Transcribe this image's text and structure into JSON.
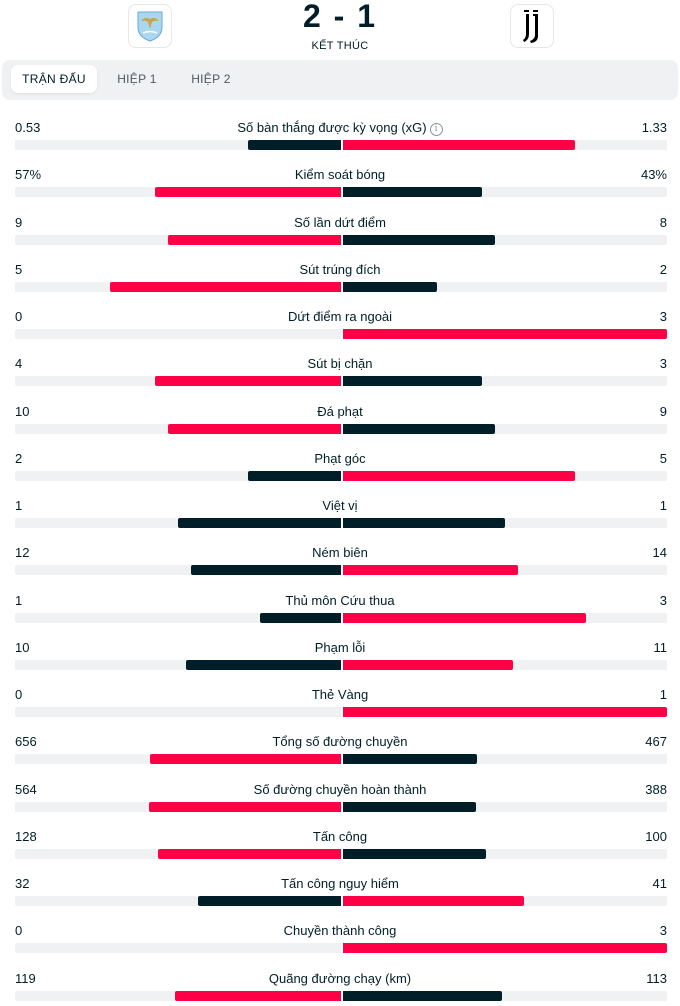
{
  "match": {
    "score": "2 - 1",
    "status": "KẾT THÚC",
    "home_logo_icon": "lazio-crest-icon",
    "away_logo_icon": "juventus-crest-icon"
  },
  "tabs": [
    {
      "label": "TRẬN ĐẤU",
      "active": true
    },
    {
      "label": "HIỆP 1",
      "active": false
    },
    {
      "label": "HIỆP 2",
      "active": false
    }
  ],
  "colors": {
    "leader": "#ff0046",
    "trailer": "#001e28",
    "track": "#eff1f2"
  },
  "stats": [
    {
      "label": "Số bàn thắng được kỳ vọng (xG)",
      "home": "0.53",
      "away": "1.33",
      "home_share": 0.285,
      "away_share": 0.715,
      "info_icon": "i"
    },
    {
      "label": "Kiểm soát bóng",
      "home": "57%",
      "away": "43%",
      "home_share": 0.57,
      "away_share": 0.43
    },
    {
      "label": "Số lần dứt điểm",
      "home": "9",
      "away": "8",
      "home_share": 0.53,
      "away_share": 0.47
    },
    {
      "label": "Sút trúng đích",
      "home": "5",
      "away": "2",
      "home_share": 0.71,
      "away_share": 0.29
    },
    {
      "label": "Dứt điểm ra ngoài",
      "home": "0",
      "away": "3",
      "home_share": 0.0,
      "away_share": 1.0
    },
    {
      "label": "Sút bị chặn",
      "home": "4",
      "away": "3",
      "home_share": 0.57,
      "away_share": 0.43
    },
    {
      "label": "Đá phạt",
      "home": "10",
      "away": "9",
      "home_share": 0.53,
      "away_share": 0.47
    },
    {
      "label": "Phạt góc",
      "home": "2",
      "away": "5",
      "home_share": 0.285,
      "away_share": 0.715
    },
    {
      "label": "Việt vị",
      "home": "1",
      "away": "1",
      "home_share": 0.5,
      "away_share": 0.5
    },
    {
      "label": "Ném biên",
      "home": "12",
      "away": "14",
      "home_share": 0.46,
      "away_share": 0.54
    },
    {
      "label": "Thủ môn Cứu thua",
      "home": "1",
      "away": "3",
      "home_share": 0.25,
      "away_share": 0.75
    },
    {
      "label": "Phạm lỗi",
      "home": "10",
      "away": "11",
      "home_share": 0.475,
      "away_share": 0.525
    },
    {
      "label": "Thẻ Vàng",
      "home": "0",
      "away": "1",
      "home_share": 0.0,
      "away_share": 1.0
    },
    {
      "label": "Tổng số đường chuyền",
      "home": "656",
      "away": "467",
      "home_share": 0.585,
      "away_share": 0.415
    },
    {
      "label": "Số đường chuyền hoàn thành",
      "home": "564",
      "away": "388",
      "home_share": 0.59,
      "away_share": 0.41
    },
    {
      "label": "Tấn công",
      "home": "128",
      "away": "100",
      "home_share": 0.56,
      "away_share": 0.44
    },
    {
      "label": "Tấn công nguy hiểm",
      "home": "32",
      "away": "41",
      "home_share": 0.44,
      "away_share": 0.56
    },
    {
      "label": "Chuyền thành công",
      "home": "0",
      "away": "3",
      "home_share": 0.0,
      "away_share": 1.0
    },
    {
      "label": "Quãng đường chạy (km)",
      "home": "119",
      "away": "113",
      "home_share": 0.51,
      "away_share": 0.49
    }
  ]
}
